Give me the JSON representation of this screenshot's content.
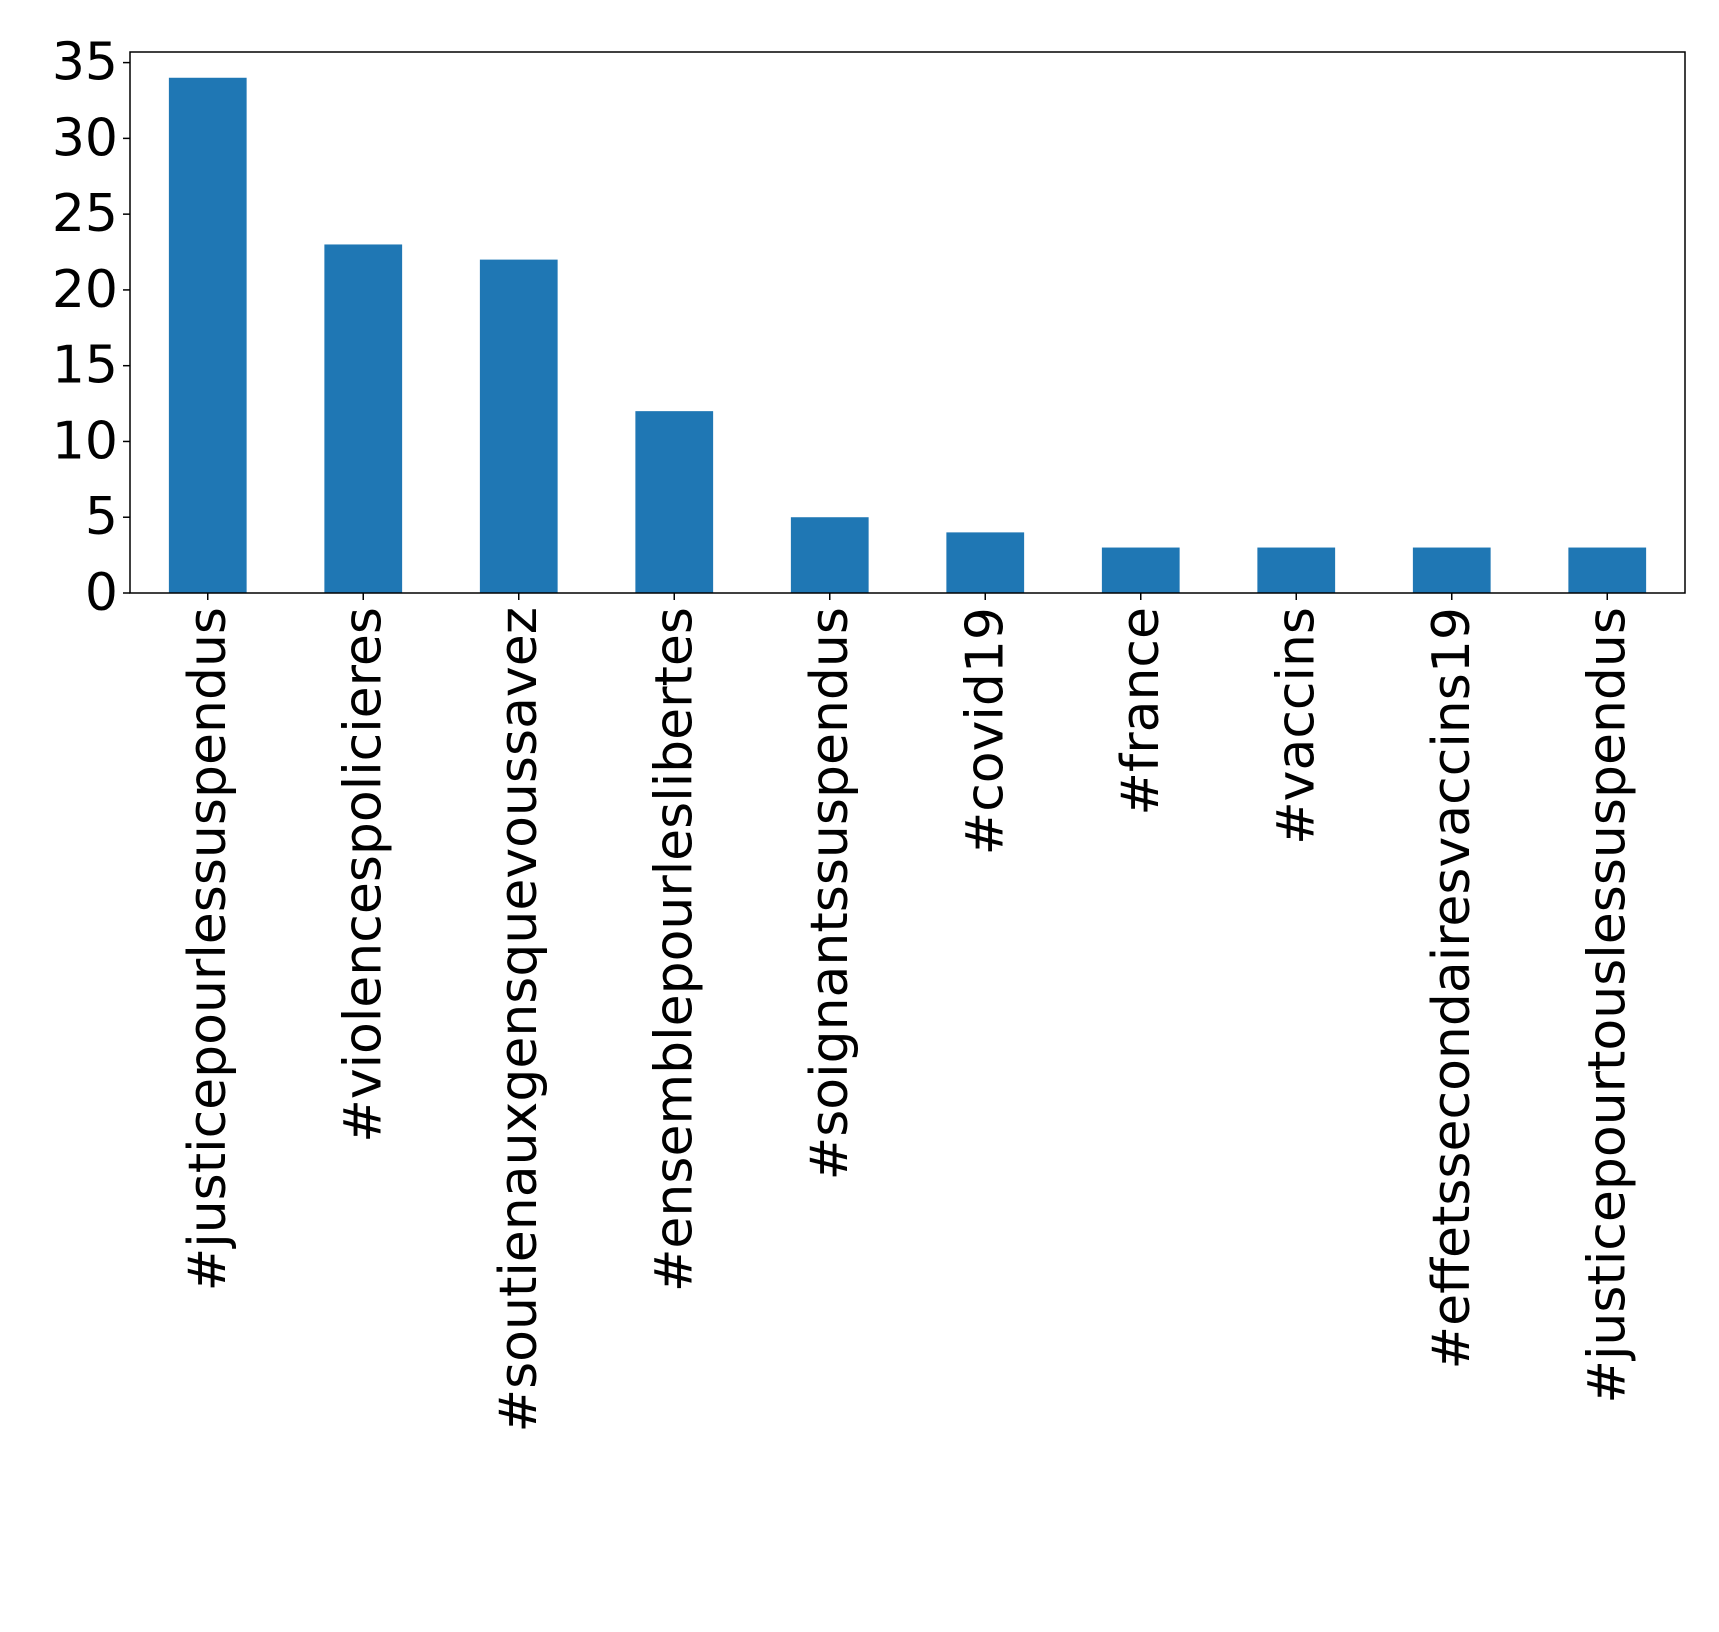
{
  "chart_data": {
    "type": "bar",
    "title": "",
    "xlabel": "",
    "ylabel": "",
    "categories": [
      "#justicepourlessuspendus",
      "#violencespolicieres",
      "#soutienauxgensquevoussavez",
      "#ensemblepourleslibertes",
      "#soignantssuspendus",
      "#covid19",
      "#france",
      "#vaccins",
      "#effetssecondairesvaccins19",
      "#justicepourtouslessuspendus"
    ],
    "values": [
      34,
      23,
      22,
      12,
      5,
      4,
      3,
      3,
      3,
      3
    ],
    "ylim": [
      0,
      35.7
    ],
    "yticks": [
      "0",
      "5",
      "10",
      "15",
      "20",
      "25",
      "30",
      "35"
    ],
    "grid": false,
    "legend": "none",
    "bar_color": "#1f77b4"
  }
}
